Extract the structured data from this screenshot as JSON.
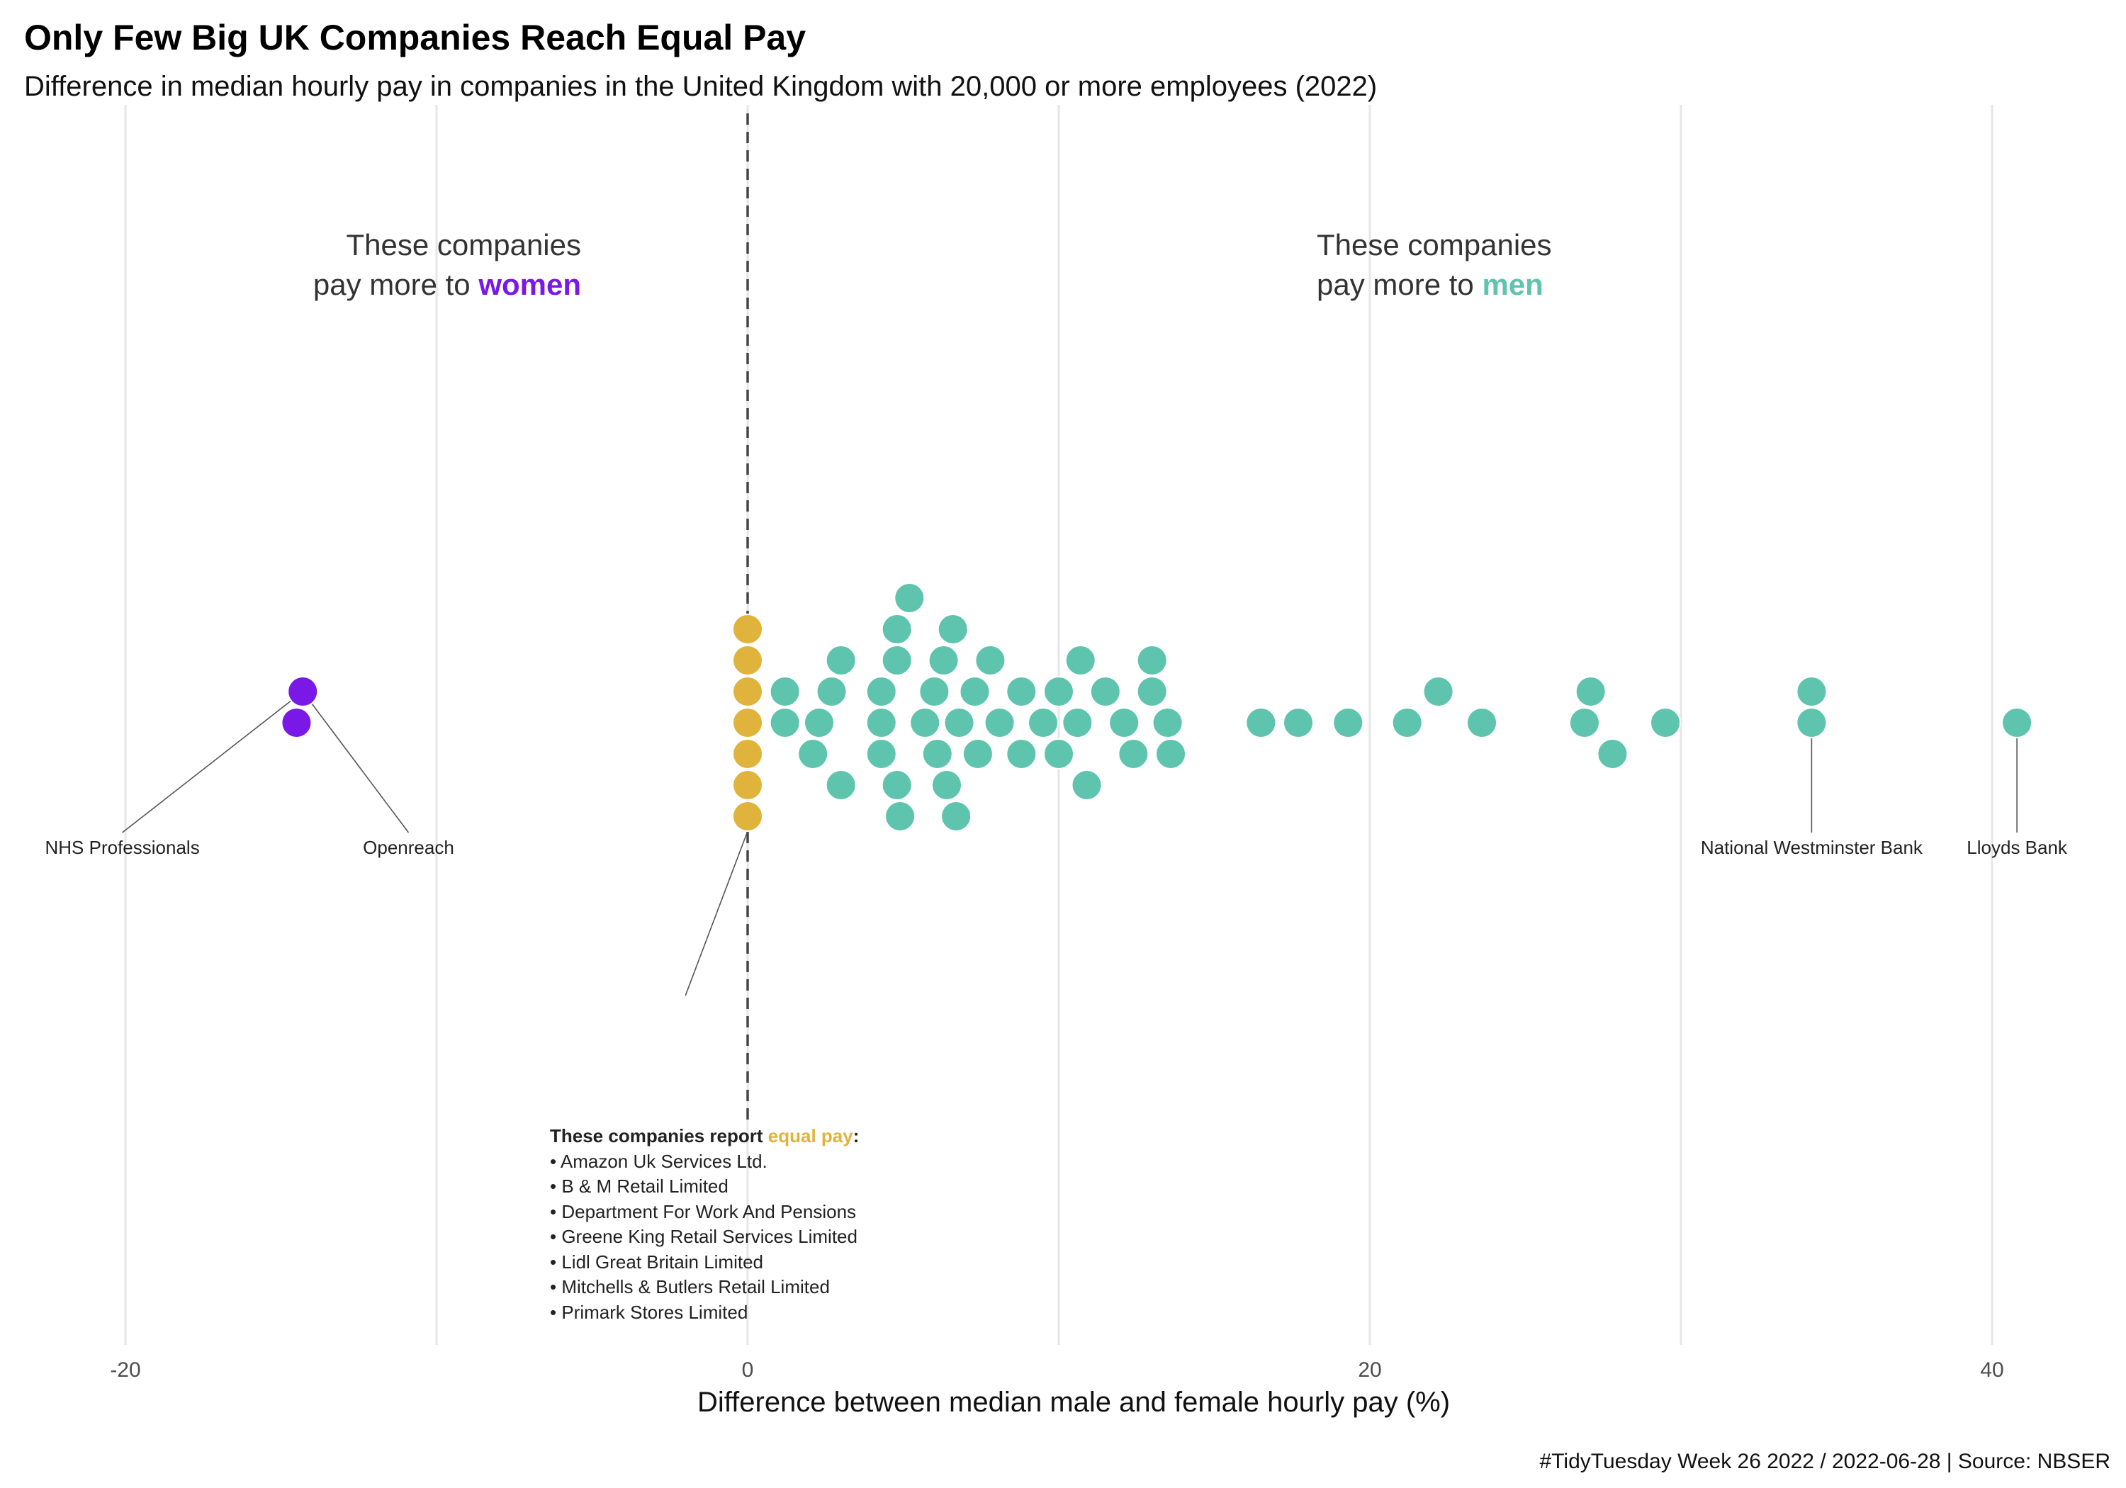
{
  "chart_data": {
    "type": "scatter",
    "title": "Only Few Big UK Companies Reach Equal Pay",
    "subtitle": "Difference in median hourly pay in companies in the United Kingdom with 20,000 or more employees (2022)",
    "xlabel": "Difference between median male and female hourly pay (%)",
    "xlim": [
      -21,
      42.5
    ],
    "x_ticks": [
      "-20",
      "0",
      "20",
      "40"
    ],
    "x_tick_values": [
      -20,
      0,
      20,
      40
    ],
    "caption": "#TidyTuesday Week 26 2022 / 2022-06-28 | Source: NBSER",
    "colors": {
      "women": "#7a18e8",
      "equal": "#e0b33c",
      "men": "#5ec4ad"
    },
    "groups": {
      "women": [
        -14.5,
        -14.3
      ],
      "equal": [
        0,
        0,
        0,
        0,
        0,
        0,
        0
      ],
      "men": [
        1.2,
        1.2,
        2.1,
        2.3,
        2.7,
        3.0,
        3.0,
        4.3,
        4.3,
        4.3,
        4.8,
        4.8,
        4.8,
        4.9,
        5.2,
        5.7,
        6.0,
        6.1,
        6.3,
        6.4,
        6.6,
        6.7,
        6.8,
        7.3,
        7.4,
        7.8,
        8.1,
        8.8,
        8.8,
        9.5,
        10.0,
        10.0,
        10.6,
        10.7,
        10.9,
        11.5,
        12.1,
        12.4,
        13.0,
        13.0,
        13.5,
        13.6,
        16.5,
        17.7,
        19.3,
        21.2,
        22.2,
        23.6,
        26.9,
        27.1,
        27.8,
        29.5,
        34.2,
        34.2,
        40.8
      ]
    },
    "annotations": [
      {
        "label": "NHS Professionals",
        "x": -14.3
      },
      {
        "label": "Openreach",
        "x": -14.3
      },
      {
        "label": "National Westminster Bank",
        "x": 34.2
      },
      {
        "label": "Lloyds Bank",
        "x": 40.8
      }
    ]
  },
  "notes": {
    "women_line1": "These companies",
    "women_line2": "pay more to ",
    "women_word": "women",
    "men_line1": "These companies",
    "men_line2": "pay more to ",
    "men_word": "men"
  },
  "equal_pay_box": {
    "heading_pre": "These companies report ",
    "heading_word": "equal pay",
    "heading_post": ":",
    "companies": [
      "• Amazon Uk Services Ltd.",
      "• B & M Retail Limited",
      "• Department For Work And Pensions",
      "• Greene King Retail Services Limited",
      "• Lidl Great Britain Limited",
      "• Mitchells & Butlers Retail Limited",
      "• Primark Stores Limited"
    ]
  }
}
